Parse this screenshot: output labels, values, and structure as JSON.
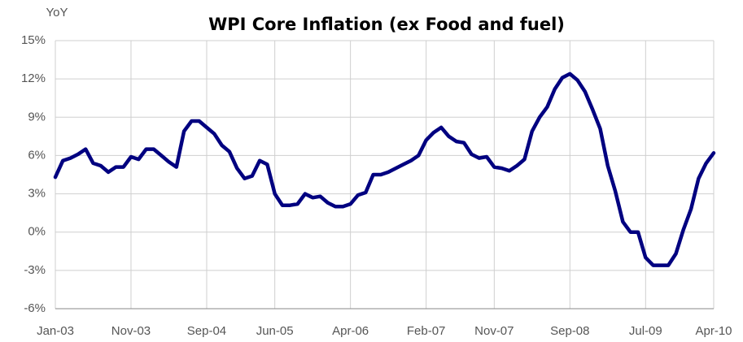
{
  "chart_data": {
    "type": "line",
    "title": "WPI Core Inflation (ex Food and fuel)",
    "y_label": "YoY",
    "categories": [
      "Jan-03",
      null,
      null,
      null,
      null,
      null,
      null,
      null,
      null,
      null,
      "Nov-03",
      null,
      null,
      null,
      null,
      null,
      null,
      null,
      null,
      null,
      "Sep-04",
      null,
      null,
      null,
      null,
      null,
      null,
      null,
      null,
      "Jun-05",
      null,
      null,
      null,
      null,
      null,
      null,
      null,
      null,
      null,
      "Apr-06",
      null,
      null,
      null,
      null,
      null,
      null,
      null,
      null,
      null,
      "Feb-07",
      null,
      null,
      null,
      null,
      null,
      null,
      null,
      null,
      "Nov-07",
      null,
      null,
      null,
      null,
      null,
      null,
      null,
      null,
      null,
      "Sep-08",
      null,
      null,
      null,
      null,
      null,
      null,
      null,
      null,
      null,
      "Jul-09",
      null,
      null,
      null,
      null,
      null,
      null,
      null,
      null,
      "Apr-10"
    ],
    "series": [
      {
        "name": "WPI Core Inflation",
        "color": "#000080",
        "values": [
          4.3,
          5.6,
          5.8,
          6.1,
          6.5,
          5.4,
          5.2,
          4.7,
          5.1,
          5.1,
          5.9,
          5.7,
          6.5,
          6.5,
          6.0,
          5.5,
          5.1,
          7.9,
          8.7,
          8.7,
          8.2,
          7.7,
          6.8,
          6.3,
          5.0,
          4.2,
          4.4,
          5.6,
          5.3,
          3.0,
          2.1,
          2.1,
          2.2,
          3.0,
          2.7,
          2.8,
          2.3,
          2.0,
          2.0,
          2.2,
          2.9,
          3.1,
          4.5,
          4.5,
          4.7,
          5.0,
          5.3,
          5.6,
          6.0,
          7.2,
          7.8,
          8.2,
          7.5,
          7.1,
          7.0,
          6.1,
          5.8,
          5.9,
          5.1,
          5.0,
          4.8,
          5.2,
          5.7,
          7.9,
          9.0,
          9.8,
          11.2,
          12.1,
          12.4,
          11.9,
          11.0,
          9.6,
          8.1,
          5.2,
          3.2,
          0.8,
          0.0,
          0.0,
          -2.0,
          -2.6,
          -2.6,
          -2.6,
          -1.7,
          0.2,
          1.8,
          4.2,
          5.4,
          6.2
        ]
      }
    ],
    "ylim": [
      -6,
      15
    ],
    "yticks": [
      {
        "value": -6,
        "label": "-6%"
      },
      {
        "value": -3,
        "label": "-3%"
      },
      {
        "value": 0,
        "label": "0%"
      },
      {
        "value": 3,
        "label": "3%"
      },
      {
        "value": 6,
        "label": "6%"
      },
      {
        "value": 9,
        "label": "9%"
      },
      {
        "value": 12,
        "label": "12%"
      },
      {
        "value": 15,
        "label": "15%"
      }
    ],
    "grid": true
  }
}
